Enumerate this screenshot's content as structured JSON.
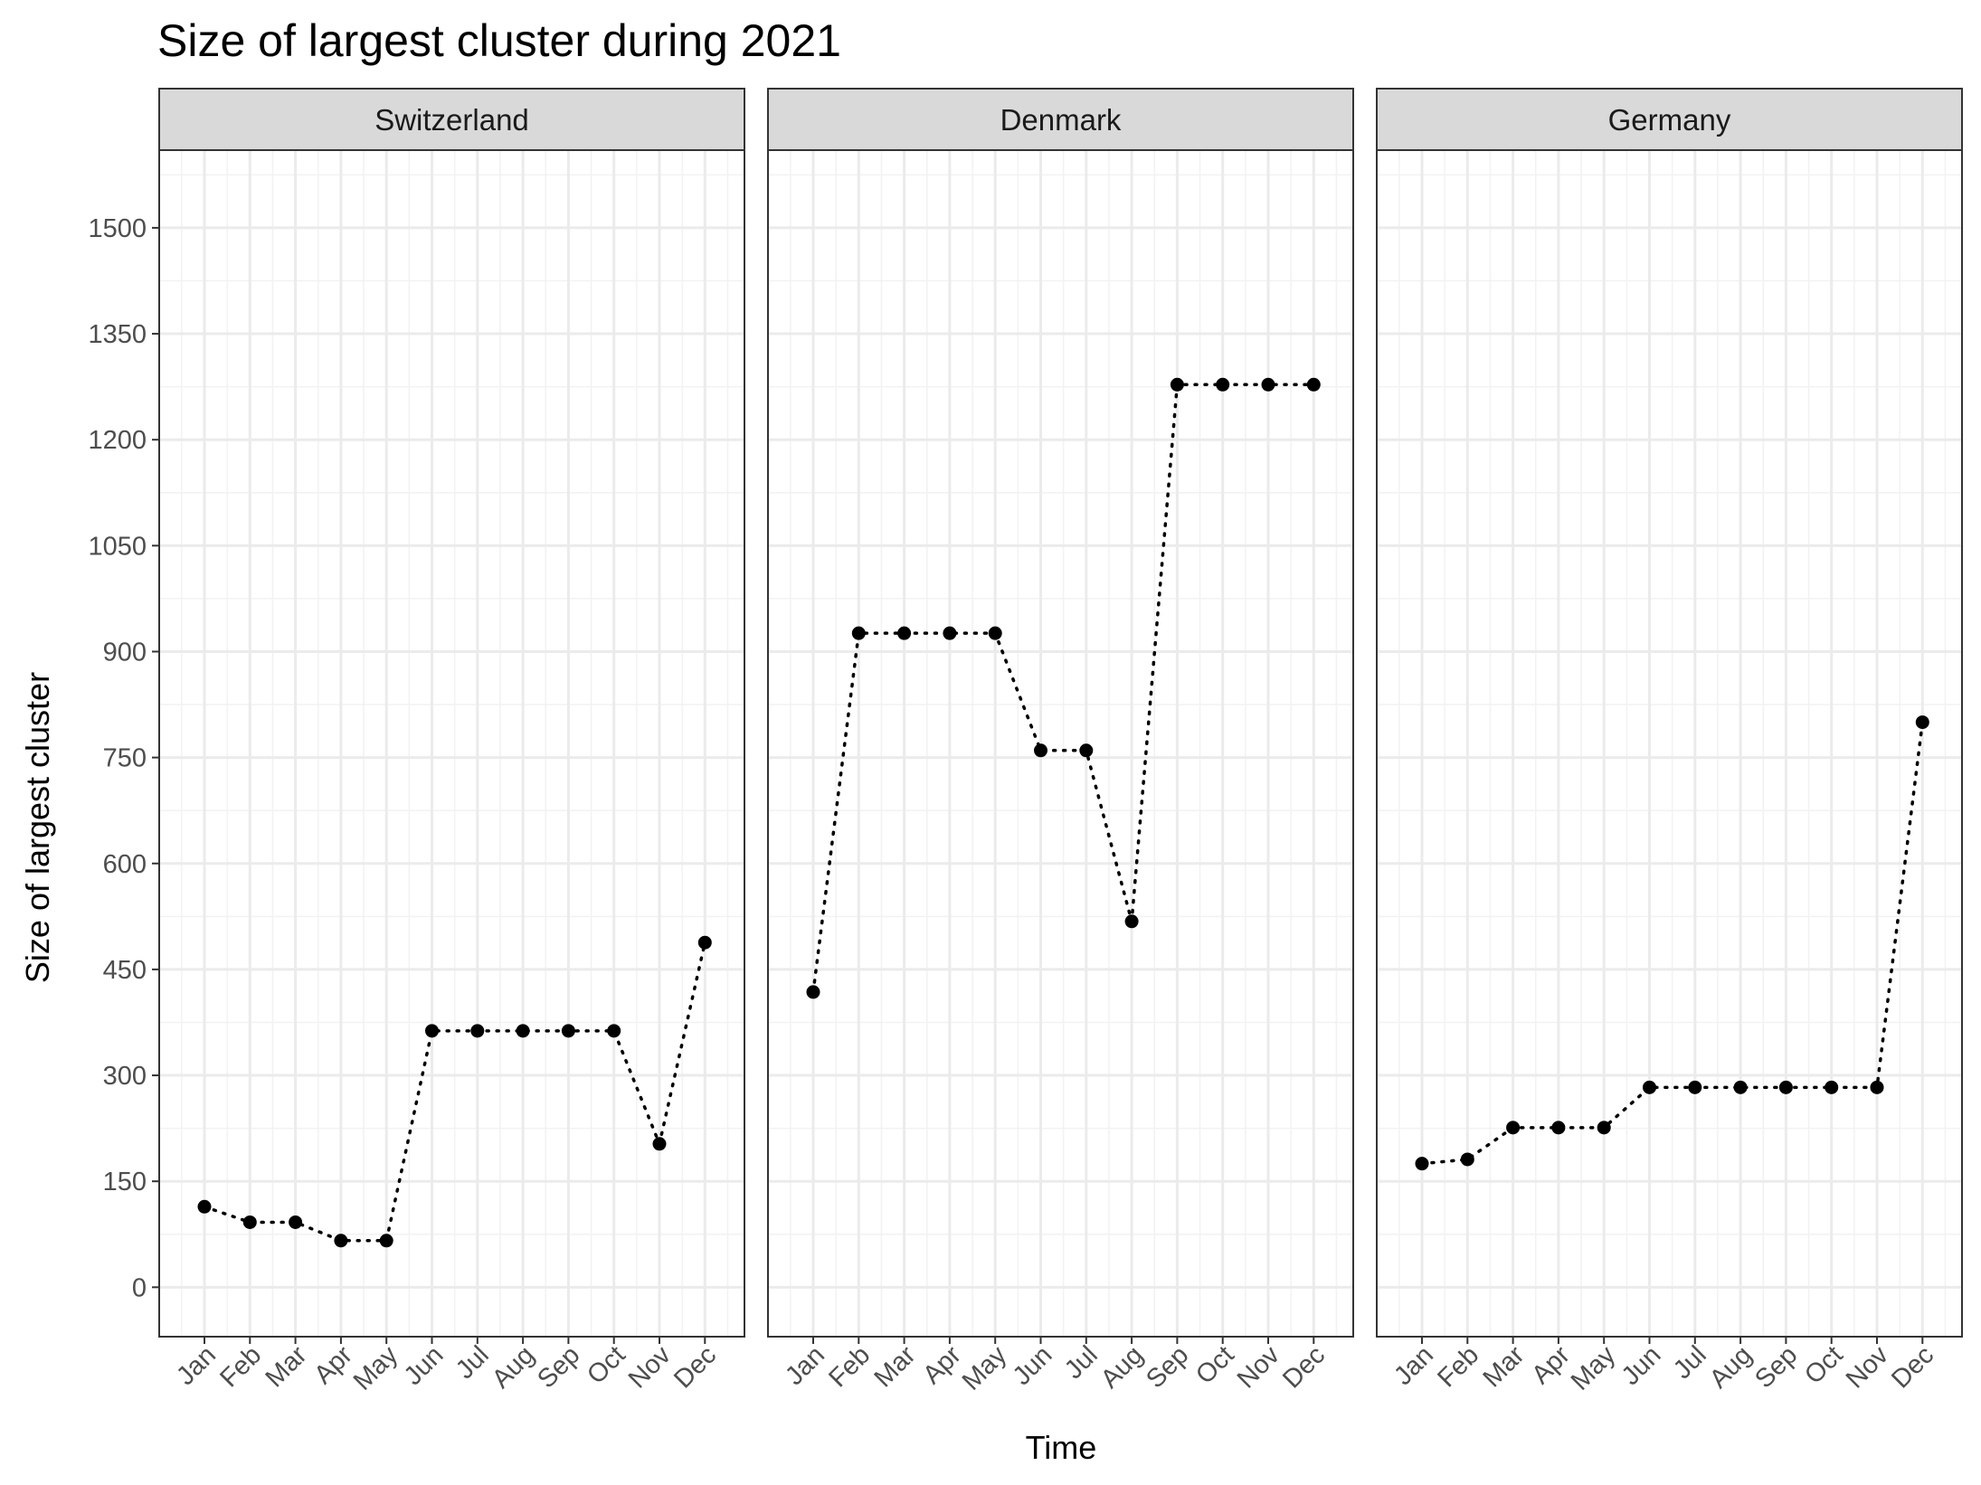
{
  "chart_data": {
    "type": "line",
    "title": "Size of largest cluster during 2021",
    "xlabel": "Time",
    "ylabel": "Size of largest cluster",
    "ylim": [
      -70,
      1610
    ],
    "y_ticks": [
      0,
      150,
      300,
      450,
      600,
      750,
      900,
      1050,
      1200,
      1350,
      1500
    ],
    "categories": [
      "Jan",
      "Feb",
      "Mar",
      "Apr",
      "May",
      "Jun",
      "Jul",
      "Aug",
      "Sep",
      "Oct",
      "Nov",
      "Dec"
    ],
    "grid": true,
    "line_style": "dotted",
    "marker": "point",
    "panels": [
      {
        "name": "Switzerland",
        "values": [
          114,
          92,
          92,
          66,
          66,
          363,
          363,
          363,
          363,
          363,
          203,
          488
        ]
      },
      {
        "name": "Denmark",
        "values": [
          418,
          926,
          926,
          926,
          926,
          760,
          760,
          518,
          1278,
          1278,
          1278,
          1278
        ]
      },
      {
        "name": "Germany",
        "values": [
          175,
          181,
          226,
          226,
          226,
          283,
          283,
          283,
          283,
          283,
          283,
          800
        ]
      }
    ]
  },
  "colors": {
    "strip_fill": "#d9d9d9",
    "panel_border": "#333333",
    "grid_major": "#ebebeb",
    "grid_minor": "#f2f2f2",
    "series": "#000000"
  }
}
